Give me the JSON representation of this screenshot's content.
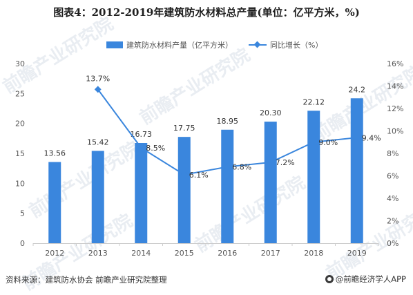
{
  "title": "图表4：2012-2019年建筑防水材料总产量(单位：亿平方米，%)",
  "source": "资料来源：建筑防水协会 前瞻产业研究院整理",
  "brand": "@前瞻经济学人APP",
  "watermark": "前瞻产业研究院",
  "colors": {
    "bar": "#3a86dd",
    "line": "#3a86dd",
    "axis": "#cccccc",
    "text": "#555555"
  },
  "chart_data": {
    "type": "bar",
    "categories": [
      "2012",
      "2013",
      "2014",
      "2015",
      "2016",
      "2017",
      "2018",
      "2019"
    ],
    "series": [
      {
        "name": "建筑防水材料产量（亿平方米）",
        "type": "bar",
        "axis": "left",
        "values": [
          13.56,
          15.42,
          16.73,
          17.75,
          18.95,
          20.3,
          22.12,
          24.2
        ],
        "labels": [
          "13.56",
          "15.42",
          "16.73",
          "17.75",
          "18.95",
          "20.30",
          "22.12",
          "24.2"
        ]
      },
      {
        "name": "同比增长（%）",
        "type": "line",
        "axis": "right",
        "values": [
          null,
          13.7,
          8.5,
          6.1,
          6.8,
          7.2,
          9.0,
          9.4
        ],
        "labels": [
          "",
          "13.7%",
          "8.5%",
          "6.1%",
          "6.8%",
          "7.2%",
          "9.0%",
          "9.4%"
        ]
      }
    ],
    "left_axis": {
      "min": 0,
      "max": 30,
      "ticks": [
        "0",
        "5",
        "10",
        "15",
        "20",
        "25",
        "30"
      ]
    },
    "right_axis": {
      "min": 0,
      "max": 16,
      "ticks": [
        "0%",
        "2%",
        "4%",
        "6%",
        "8%",
        "10%",
        "12%",
        "14%",
        "16%"
      ]
    },
    "grid": false,
    "legend": "top"
  }
}
